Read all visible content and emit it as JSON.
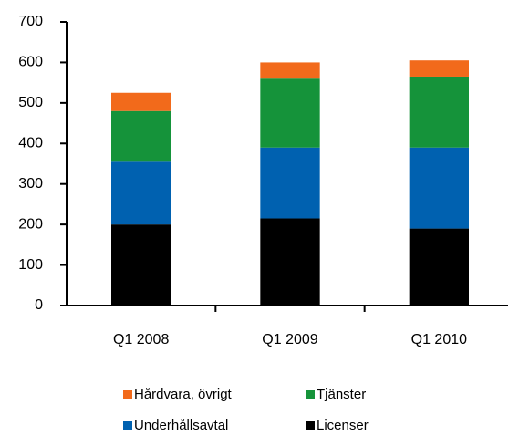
{
  "chart_data": {
    "type": "stacked_bar",
    "categories": [
      "Q1 2008",
      "Q1 2009",
      "Q1 2010"
    ],
    "series": [
      {
        "name": "Licenser",
        "color": "#000000",
        "values": [
          200,
          215,
          190
        ]
      },
      {
        "name": "Underhållsavtal",
        "color": "#0061b0",
        "values": [
          155,
          175,
          200
        ]
      },
      {
        "name": "Tjänster",
        "color": "#15933a",
        "values": [
          125,
          170,
          175
        ]
      },
      {
        "name": "Hårdvara, övrigt",
        "color": "#f26a1b",
        "values": [
          45,
          40,
          40
        ]
      }
    ],
    "ylim": [
      0,
      700
    ],
    "yticks": [
      0,
      100,
      200,
      300,
      400,
      500,
      600,
      700
    ],
    "grid": false
  }
}
